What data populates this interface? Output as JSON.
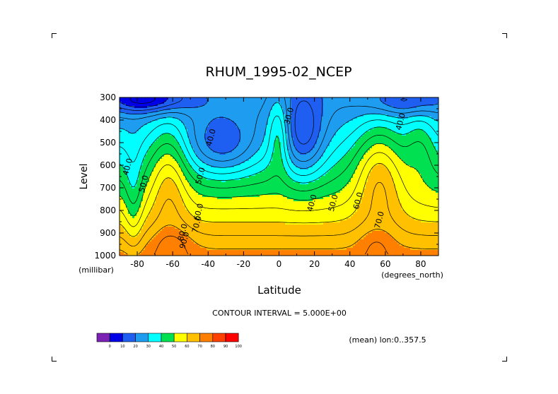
{
  "chart_data": {
    "type": "heatmap",
    "title": "RHUM_1995-02_NCEP",
    "xlabel": "Latitude",
    "ylabel": "Level",
    "x_units": "(degrees_north)",
    "y_units": "(millibar)",
    "xlim": [
      -90,
      90
    ],
    "ylim": [
      1000,
      300
    ],
    "x_ticks": [
      -80,
      -60,
      -40,
      -20,
      0,
      20,
      40,
      60,
      80
    ],
    "y_ticks": [
      300,
      400,
      500,
      600,
      700,
      800,
      900,
      1000
    ],
    "contour_interval_text": "CONTOUR INTERVAL = 5.000E+00",
    "mean_text": "(mean) lon:0..357.5",
    "colorbar": {
      "boundaries": [
        0,
        10,
        20,
        30,
        40,
        50,
        60,
        70,
        80,
        90,
        100
      ],
      "colors": [
        "#7b22b4",
        "#0000e6",
        "#1e5ef0",
        "#1e9cf0",
        "#00ffff",
        "#00e050",
        "#ffff00",
        "#ffc000",
        "#ff8000",
        "#ff4000",
        "#ff0000"
      ]
    },
    "contour_labels": [
      {
        "text": "40.0",
        "lat": -84,
        "lev": 610
      },
      {
        "text": "50.0",
        "lat": -75,
        "lev": 685
      },
      {
        "text": "40.0",
        "lat": -37,
        "lev": 480
      },
      {
        "text": "50.0",
        "lat": -43,
        "lev": 650
      },
      {
        "text": "60.0",
        "lat": -44,
        "lev": 810
      },
      {
        "text": "70.0",
        "lat": -45,
        "lev": 865
      },
      {
        "text": "80.0",
        "lat": -53,
        "lev": 900
      },
      {
        "text": "90.0",
        "lat": -52,
        "lev": 935
      },
      {
        "text": "30.0",
        "lat": 7,
        "lev": 385
      },
      {
        "text": "40.0",
        "lat": 20,
        "lev": 770
      },
      {
        "text": "50.0",
        "lat": 32,
        "lev": 770
      },
      {
        "text": "60.0",
        "lat": 46,
        "lev": 760
      },
      {
        "text": "70.0",
        "lat": 58,
        "lev": 845
      },
      {
        "text": "40.0",
        "lat": 70,
        "lev": 410
      }
    ]
  }
}
